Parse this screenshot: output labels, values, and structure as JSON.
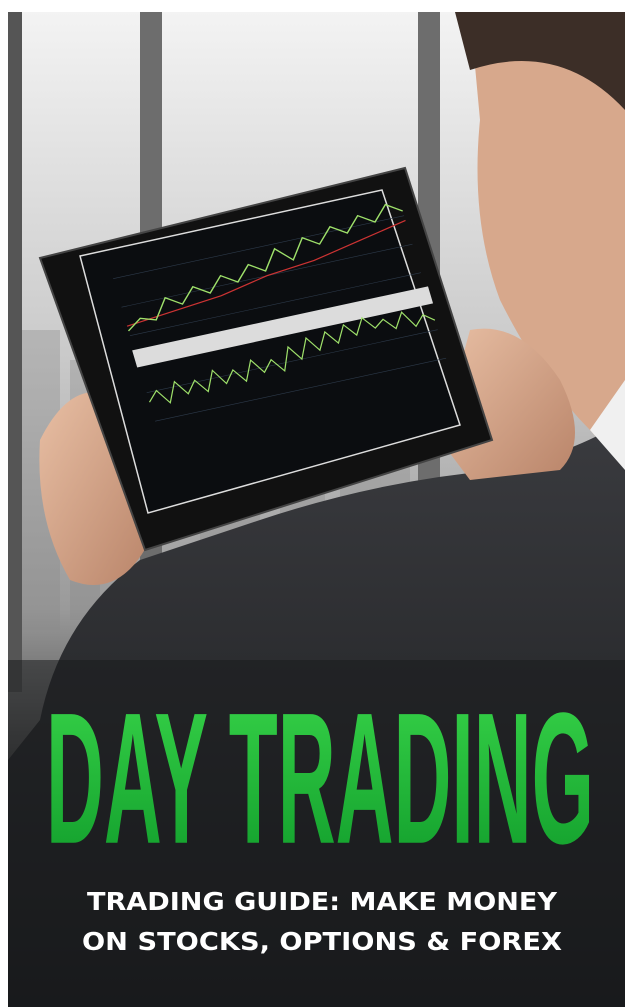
{
  "cover": {
    "title": "DAY TRADING",
    "subtitle_lines": [
      "TRADING GUIDE: MAKE MONEY",
      "ON STOCKS, OPTIONS & FOREX"
    ]
  }
}
